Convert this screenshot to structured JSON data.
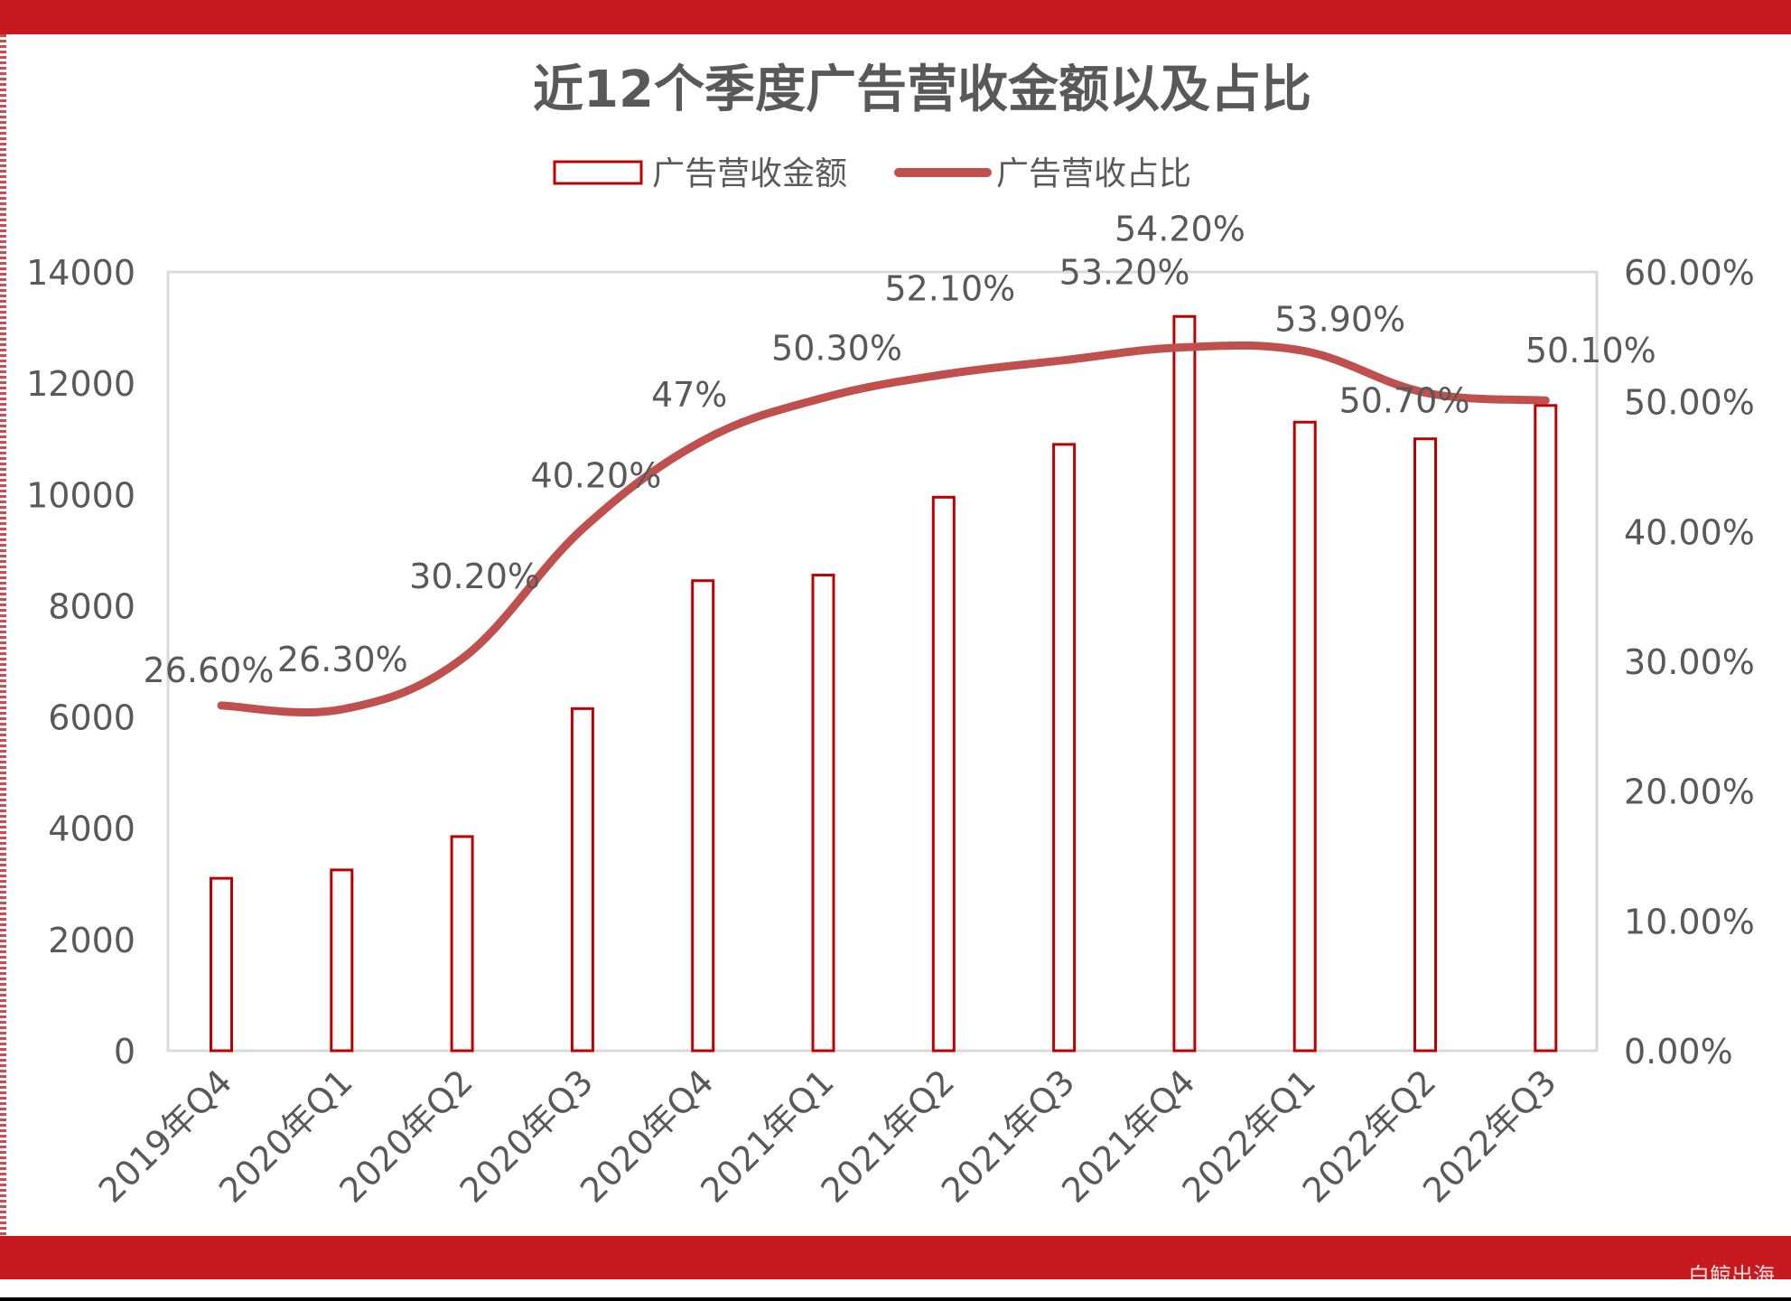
{
  "watermark": "白鲸出海",
  "colors": {
    "band": "#c8191e",
    "bar_stroke": "#c00000",
    "line": "#c0504d",
    "text": "#595959"
  },
  "chart_data": {
    "type": "bar",
    "title": "近12个季度广告营收金额以及占比",
    "categories": [
      "2019年Q4",
      "2020年Q1",
      "2020年Q2",
      "2020年Q3",
      "2020年Q4",
      "2021年Q1",
      "2021年Q2",
      "2021年Q3",
      "2021年Q4",
      "2022年Q1",
      "2022年Q2",
      "2022年Q3"
    ],
    "series": [
      {
        "name": "广告营收金额",
        "type": "bar",
        "axis": "left",
        "values": [
          3100,
          3250,
          3850,
          6150,
          8450,
          8550,
          9950,
          10900,
          13200,
          11300,
          11000,
          11600
        ]
      },
      {
        "name": "广告营收占比",
        "type": "line",
        "axis": "right",
        "values": [
          26.6,
          26.3,
          30.2,
          40.2,
          47,
          50.3,
          52.1,
          53.2,
          54.2,
          53.9,
          50.7,
          50.1
        ],
        "labels": [
          "26.60%",
          "26.30%",
          "30.20%",
          "40.20%",
          "47%",
          "50.30%",
          "52.10%",
          "53.20%",
          "54.20%",
          "53.90%",
          "50.70%",
          "50.10%"
        ]
      }
    ],
    "y_left": {
      "ylim": [
        0,
        14000
      ],
      "ticks": [
        "0",
        "2000",
        "4000",
        "6000",
        "8000",
        "10000",
        "12000",
        "14000"
      ]
    },
    "y_right": {
      "ylim": [
        0,
        60
      ],
      "ticks": [
        "0.00%",
        "10.00%",
        "20.00%",
        "30.00%",
        "40.00%",
        "50.00%",
        "60.00%"
      ]
    },
    "legend": "top-center",
    "grid": false
  }
}
